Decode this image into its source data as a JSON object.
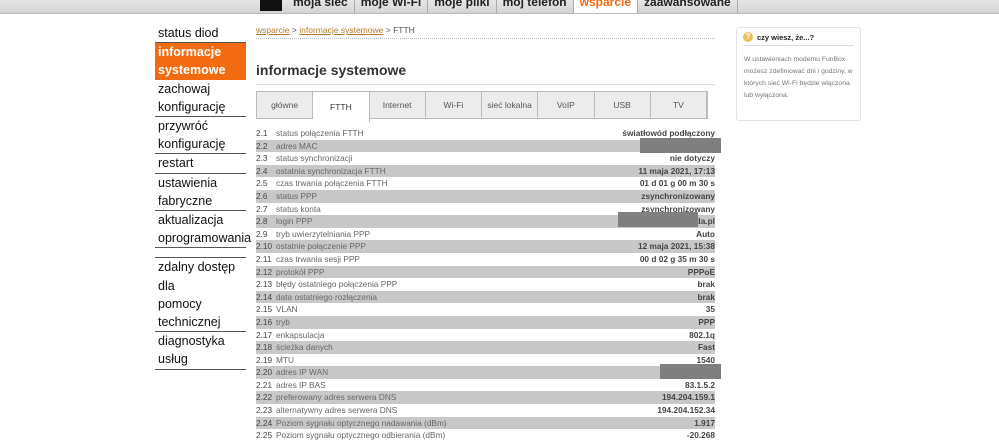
{
  "nav": {
    "items": [
      "moja sieć",
      "moje Wi-Fi",
      "moje pliki",
      "mój telefon",
      "wsparcie",
      "zaawansowane"
    ],
    "active": 4
  },
  "sidebar": {
    "items": [
      [
        "status diod"
      ],
      [
        "informacje",
        "systemowe"
      ],
      [
        "zachowaj",
        "konfigurację"
      ],
      [
        "przywróć",
        "konfigurację"
      ],
      [
        "restart"
      ],
      [
        "ustawienia",
        "fabryczne"
      ],
      [
        "aktualizacja",
        "oprogramowania"
      ],
      null,
      [
        "zdalny dostęp dla",
        "pomocy",
        "technicznej"
      ],
      [
        "diagnostyka usług"
      ]
    ],
    "active": 1
  },
  "breadcrumb": {
    "link1": "wsparcie",
    "sep": ">",
    "link2": "informacje systemowe",
    "current": "FTTH"
  },
  "page_title": "informacje systemowe",
  "tabs": {
    "items": [
      "główne",
      "FTTH",
      "Internet",
      "Wi-Fi",
      "sieć lokalna",
      "VoIP",
      "USB",
      "TV"
    ],
    "active": 1
  },
  "rows": [
    [
      "2.1",
      "status połączenia FTTH",
      "światłowód podłączony"
    ],
    [
      "2.2",
      "adres MAC",
      ""
    ],
    [
      "2.3",
      "status synchronizacji",
      "nie dotyczy"
    ],
    [
      "2.4",
      "ostatnia synchronizacja FTTH",
      "11 maja 2021, 17:13"
    ],
    [
      "2.5",
      "czas trwania połączenia FTTH",
      "01 d 01 g 00 m 30 s"
    ],
    [
      "2.6",
      "status PPP",
      "zsynchronizowany"
    ],
    [
      "2.7",
      "status konta",
      "zsynchronizowany"
    ],
    [
      "2.8",
      "login PPP",
      "da.pl"
    ],
    [
      "2.9",
      "tryb uwierzytelniania PPP",
      "Auto"
    ],
    [
      "2.10",
      "ostatnie połączenie PPP",
      "12 maja 2021, 15:38"
    ],
    [
      "2.11",
      "czas trwania sesji PPP",
      "00 d 02 g 35 m 30 s"
    ],
    [
      "2.12",
      "protokół PPP",
      "PPPoE"
    ],
    [
      "2.13",
      "błędy ostatniego połączenia PPP",
      "brak"
    ],
    [
      "2.14",
      "data ostatniego rozłączenia",
      "brak"
    ],
    [
      "2.15",
      "VLAN",
      "35"
    ],
    [
      "2.16",
      "tryb",
      "PPP"
    ],
    [
      "2.17",
      "enkapsulacja",
      "802.1q"
    ],
    [
      "2.18",
      "ścieżka danych",
      "Fast"
    ],
    [
      "2.19",
      "MTU",
      "1540"
    ],
    [
      "2.20",
      "adres IP WAN",
      ""
    ],
    [
      "2.21",
      "adres IP BAS",
      "83.1.5.2"
    ],
    [
      "2.22",
      "preferowany adres serwera DNS",
      "194.204.159.1"
    ],
    [
      "2.23",
      "alternatywny adres serwera DNS",
      "194.204.152.34"
    ],
    [
      "2.24",
      "Poziom sygnału optycznego nadawania (dBm)",
      "1.917"
    ],
    [
      "2.25",
      "Poziom sygnału optycznego odbierania (dBm)",
      "-20.268"
    ]
  ],
  "tip": {
    "title": "czy wiesz, że...?",
    "text": "W ustawieniach modemu FunBox możesz zdefiniować dni i godziny, w których sieć Wi-Fi będzie włączona lub wyłączona."
  },
  "colors": {
    "accent": "#f26b10",
    "row_alt": "#c8c8c8",
    "redaction": "#7f7f7f"
  }
}
